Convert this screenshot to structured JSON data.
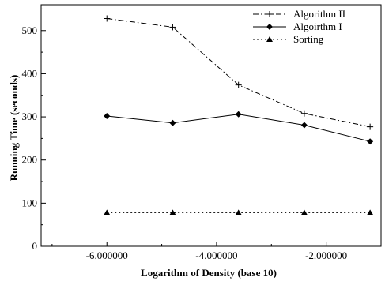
{
  "chart_data": {
    "type": "line",
    "title": "",
    "xlabel": "Logarithm of Density (base 10)",
    "ylabel": "Running Time (seconds)",
    "xlim": [
      -7.2,
      -1.0
    ],
    "ylim": [
      0,
      560
    ],
    "x_ticks": [
      -6,
      -4,
      -2
    ],
    "x_tick_labels": [
      "-6.000000",
      "-4.000000",
      "-2.000000"
    ],
    "y_ticks": [
      0,
      100,
      200,
      300,
      400,
      500
    ],
    "y_tick_labels": [
      "0",
      "100",
      "200",
      "300",
      "400",
      "500"
    ],
    "grid": false,
    "legend_position": "top-right",
    "x": [
      -6.0,
      -4.8,
      -3.6,
      -2.4,
      -1.2
    ],
    "series": [
      {
        "name": "Algorithm II",
        "values": [
          528,
          508,
          374,
          308,
          277
        ],
        "marker": "plus",
        "line_style": "dashdot",
        "color": "#000000"
      },
      {
        "name": "Algoirthm I",
        "values": [
          302,
          286,
          306,
          281,
          243
        ],
        "marker": "diamond",
        "line_style": "solid",
        "color": "#000000"
      },
      {
        "name": "Sorting",
        "values": [
          78,
          78,
          78,
          78,
          78
        ],
        "marker": "triangle",
        "line_style": "dotted",
        "color": "#000000"
      }
    ]
  }
}
